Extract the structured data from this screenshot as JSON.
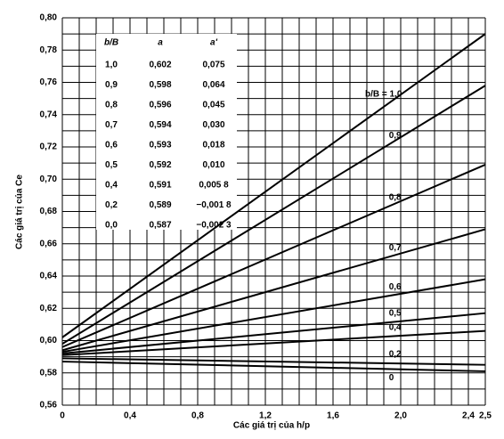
{
  "chart_data": {
    "type": "line",
    "xlabel": "Các giá trị của h/p",
    "ylabel": "Các giá trị của Ce",
    "xlim": [
      0,
      2.5
    ],
    "ylim": [
      0.56,
      0.8
    ],
    "xticks": [
      {
        "value": 0,
        "label": "0"
      },
      {
        "value": 0.4,
        "label": "0,4"
      },
      {
        "value": 0.8,
        "label": "0,8"
      },
      {
        "value": 1.2,
        "label": "1,2"
      },
      {
        "value": 1.6,
        "label": "1,6"
      },
      {
        "value": 2.0,
        "label": "2,0"
      },
      {
        "value": 2.4,
        "label": "2,4"
      },
      {
        "value": 2.5,
        "label": "2,5"
      }
    ],
    "yticks": [
      {
        "value": 0.56,
        "label": "0,56"
      },
      {
        "value": 0.58,
        "label": "0,58"
      },
      {
        "value": 0.6,
        "label": "0,60"
      },
      {
        "value": 0.62,
        "label": "0,62"
      },
      {
        "value": 0.64,
        "label": "0,64"
      },
      {
        "value": 0.66,
        "label": "0,66"
      },
      {
        "value": 0.68,
        "label": "0,68"
      },
      {
        "value": 0.7,
        "label": "0,70"
      },
      {
        "value": 0.72,
        "label": "0,72"
      },
      {
        "value": 0.74,
        "label": "0,74"
      },
      {
        "value": 0.76,
        "label": "0,76"
      },
      {
        "value": 0.78,
        "label": "0,78"
      },
      {
        "value": 0.8,
        "label": "0,80"
      }
    ],
    "xgrid": [
      0,
      0.1,
      0.2,
      0.3,
      0.4,
      0.5,
      0.6,
      0.7,
      0.8,
      0.9,
      1.0,
      1.1,
      1.2,
      1.3,
      1.4,
      1.5,
      1.6,
      1.7,
      1.8,
      1.9,
      2.0,
      2.1,
      2.2,
      2.3,
      2.4,
      2.5
    ],
    "ygrid": [
      0.56,
      0.57,
      0.58,
      0.59,
      0.6,
      0.61,
      0.62,
      0.63,
      0.64,
      0.65,
      0.66,
      0.67,
      0.68,
      0.69,
      0.7,
      0.71,
      0.72,
      0.73,
      0.74,
      0.75,
      0.76,
      0.77,
      0.78,
      0.79,
      0.8
    ],
    "grid": true,
    "color": "#000000",
    "x": [
      0,
      2.5
    ],
    "series": [
      {
        "name": "b/B = 1,0",
        "values": [
          0.602,
          0.79
        ]
      },
      {
        "name": "0,9",
        "values": [
          0.598,
          0.758
        ]
      },
      {
        "name": "0,8",
        "values": [
          0.596,
          0.709
        ]
      },
      {
        "name": "0,7",
        "values": [
          0.594,
          0.669
        ]
      },
      {
        "name": "0,6",
        "values": [
          0.593,
          0.638
        ]
      },
      {
        "name": "0,5",
        "values": [
          0.592,
          0.617
        ]
      },
      {
        "name": "0,4",
        "values": [
          0.591,
          0.606
        ]
      },
      {
        "name": "0,2",
        "values": [
          0.589,
          0.585
        ]
      },
      {
        "name": "0",
        "values": [
          0.587,
          0.581
        ]
      }
    ],
    "table": {
      "columns": [
        "b/B",
        "a",
        "a'"
      ],
      "rows": [
        [
          "1,0",
          "0,602",
          "0,075"
        ],
        [
          "0,9",
          "0,598",
          "0,064"
        ],
        [
          "0,8",
          "0,596",
          "0,045"
        ],
        [
          "0,7",
          "0,594",
          "0,030"
        ],
        [
          "0,6",
          "0,593",
          "0,018"
        ],
        [
          "0,5",
          "0,592",
          "0,010"
        ],
        [
          "0,4",
          "0,591",
          "0,005 8"
        ],
        [
          "0,2",
          "0,589",
          "−0,001 8"
        ],
        [
          "0,0",
          "0,587",
          "−0,002 3"
        ]
      ]
    }
  }
}
